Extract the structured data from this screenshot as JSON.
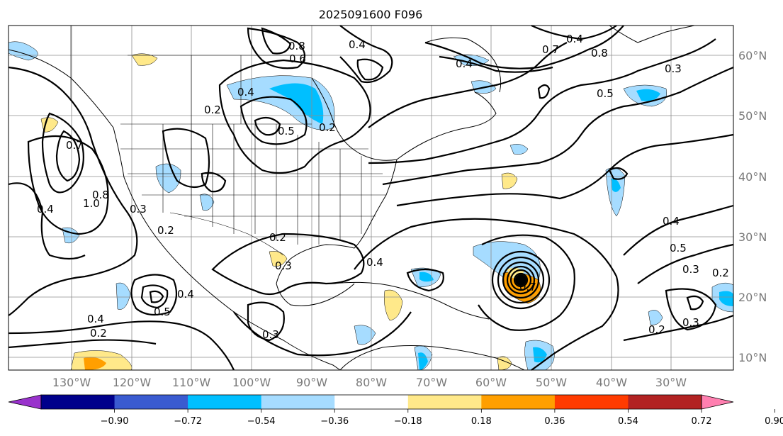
{
  "title": "2025091600 F096",
  "lon_labels": [
    "130°W",
    "120°W",
    "110°W",
    "100°W",
    "90°W",
    "80°W",
    "70°W",
    "60°W",
    "50°W",
    "40°W",
    "30°W"
  ],
  "lat_labels": [
    "60°N",
    "50°N",
    "40°N",
    "30°N",
    "20°N",
    "10°N"
  ],
  "colorbar": {
    "ticks": [
      "−0.90",
      "−0.72",
      "−0.54",
      "−0.36",
      "−0.18",
      "0.18",
      "0.36",
      "0.54",
      "0.72",
      "0.90"
    ],
    "colors": [
      "#9932cc",
      "#00008b",
      "#3a5bd0",
      "#00bfff",
      "#a6dcff",
      "#ffffff",
      "#ffe98a",
      "#ff9f00",
      "#ff3b00",
      "#b22222",
      "#ff7fb0"
    ]
  },
  "contour_labels": [
    "0.8",
    "0.6",
    "0.4",
    "0.7",
    "0.8",
    "0.4",
    "0.3",
    "0.5",
    "0.2",
    "0.4",
    "0.5",
    "0.7",
    "0.8",
    "1.0",
    "0.4",
    "0.3",
    "0.2",
    "0.3",
    "0.2",
    "0.4",
    "0.4",
    "0.5",
    "0.4",
    "0.2",
    "0.3",
    "0.4",
    "0.5",
    "0.3",
    "0.2",
    "0.3",
    "0.2",
    "0.2",
    "0.4",
    "0.7"
  ],
  "colors": {
    "light_blue": "#a6dcff",
    "blue": "#00bfff",
    "yellow": "#ffe98a",
    "orange": "#ff9f00"
  }
}
